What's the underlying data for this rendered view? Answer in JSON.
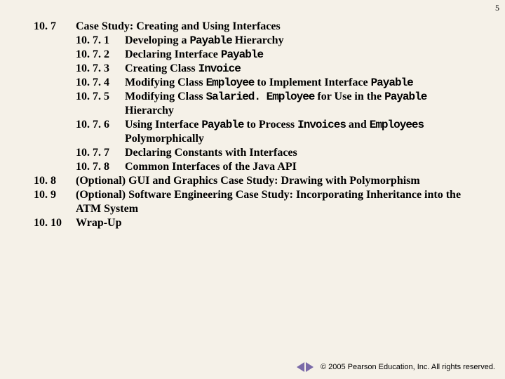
{
  "page_number": "5",
  "sections": [
    {
      "num": "10. 7",
      "title": "Case Study: Creating and Using Interfaces",
      "subs": [
        {
          "num": "10. 7. 1",
          "pre": "Developing a ",
          "code": "Payable",
          "post": " Hierarchy"
        },
        {
          "num": "10. 7. 2",
          "pre": "Declaring Interface ",
          "code": "Payable",
          "post": ""
        },
        {
          "num": "10. 7. 3",
          "pre": "Creating Class ",
          "code": "Invoice",
          "post": ""
        },
        {
          "num": "10. 7. 4",
          "pre": "Modifying Class ",
          "code": "Employee",
          "post": " to Implement Interface ",
          "code2": "Payable"
        },
        {
          "num": "10. 7. 5",
          "pre": "Modifying Class ",
          "code": "Salaried. Employee",
          "post": " for Use in the ",
          "code2": "Payable",
          "post2": " Hierarchy"
        },
        {
          "num": "10. 7. 6",
          "pre": "Using Interface ",
          "code": "Payable",
          "post": " to Process ",
          "code2": "Invoices",
          "mid": " and ",
          "code3": "Employees",
          "post3": " Polymorphically"
        },
        {
          "num": "10. 7. 7",
          "pre": "Declaring Constants with Interfaces"
        },
        {
          "num": "10. 7. 8",
          "pre": "Common Interfaces of the Java API"
        }
      ]
    },
    {
      "num": "10. 8",
      "title": "(Optional) GUI and Graphics Case Study: Drawing with Polymorphism"
    },
    {
      "num": "10. 9",
      "title": "(Optional) Software Engineering Case Study: Incorporating Inheritance into the ATM System"
    },
    {
      "num": "10. 10",
      "title": "Wrap-Up"
    }
  ],
  "copyright": "© 2005 Pearson Education, Inc. All rights reserved.",
  "colors": {
    "bg": "#f5f1e8",
    "nav": "#7a6aa8",
    "text": "#000000"
  }
}
